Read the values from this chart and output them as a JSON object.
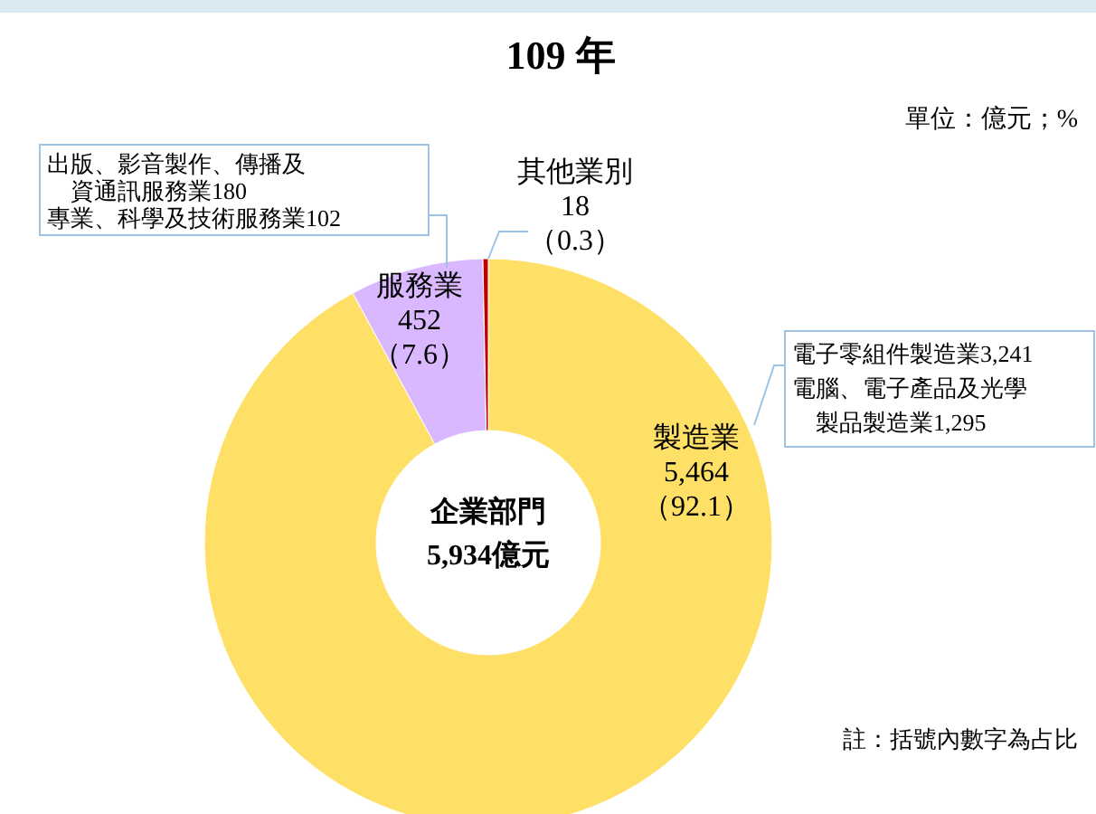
{
  "chart_data": {
    "type": "donut",
    "title": "109 年",
    "categories": [
      "製造業",
      "服務業",
      "其他業別"
    ],
    "values": [
      5464,
      452,
      18
    ],
    "colors": [
      "#ffe066",
      "#d9b8ff",
      "#c00000"
    ],
    "value_labels": [
      "5,464\n（92.1）",
      "452\n（7.6）",
      "18\n（0.3）"
    ],
    "annotations": [
      "單位：億元；%",
      "企業部門\n5,934億元",
      "出版、影音製作、傳播及資通訊服務業180",
      "專業、科學及技術服務業102",
      "電子零組件製造業3,241",
      "電腦、電子產品及光學製品製造業1,295",
      "註：括號內數字為占比"
    ]
  }
}
